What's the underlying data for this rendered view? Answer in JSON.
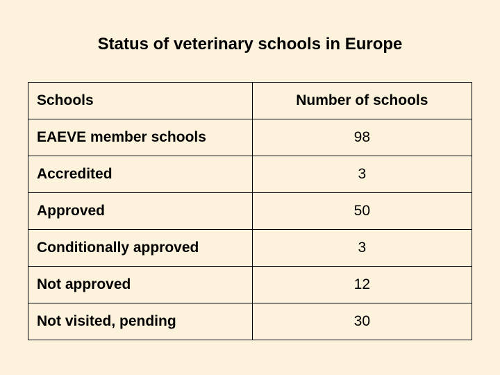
{
  "title": "Status of veterinary schools in Europe",
  "table": {
    "type": "table",
    "background_color": "#fdf2dc",
    "border_color": "#000000",
    "text_color": "#000000",
    "font_family": "Arial",
    "label_fontsize": 21,
    "label_fontweight": "bold",
    "value_fontsize": 21,
    "value_fontweight": "normal",
    "columns": [
      "Schools",
      "Number of schools"
    ],
    "column_align": [
      "left",
      "center"
    ],
    "rows": [
      {
        "label": "EAEVE member schools",
        "value": "98"
      },
      {
        "label": "Accredited",
        "value": "3"
      },
      {
        "label": "Approved",
        "value": "50"
      },
      {
        "label": "Conditionally approved",
        "value": "3"
      },
      {
        "label": "Not approved",
        "value": "12"
      },
      {
        "label": "Not visited, pending",
        "value": "30"
      }
    ]
  }
}
